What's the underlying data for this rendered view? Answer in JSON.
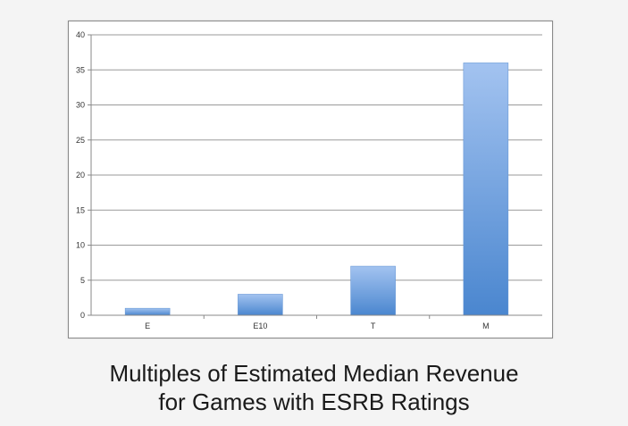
{
  "chart_data": {
    "type": "bar",
    "categories": [
      "E",
      "E10",
      "T",
      "M"
    ],
    "values": [
      1,
      3,
      7,
      36
    ],
    "ylim": [
      0,
      40
    ],
    "yticks": [
      0,
      5,
      10,
      15,
      20,
      25,
      30,
      35,
      40
    ],
    "grid": true,
    "legend": "none",
    "bar_color_top": "#a3c3f0",
    "bar_color_bottom": "#4a86cf"
  },
  "caption": {
    "line1": "Multiples of Estimated Median Revenue",
    "line2": "for Games with ESRB Ratings"
  }
}
